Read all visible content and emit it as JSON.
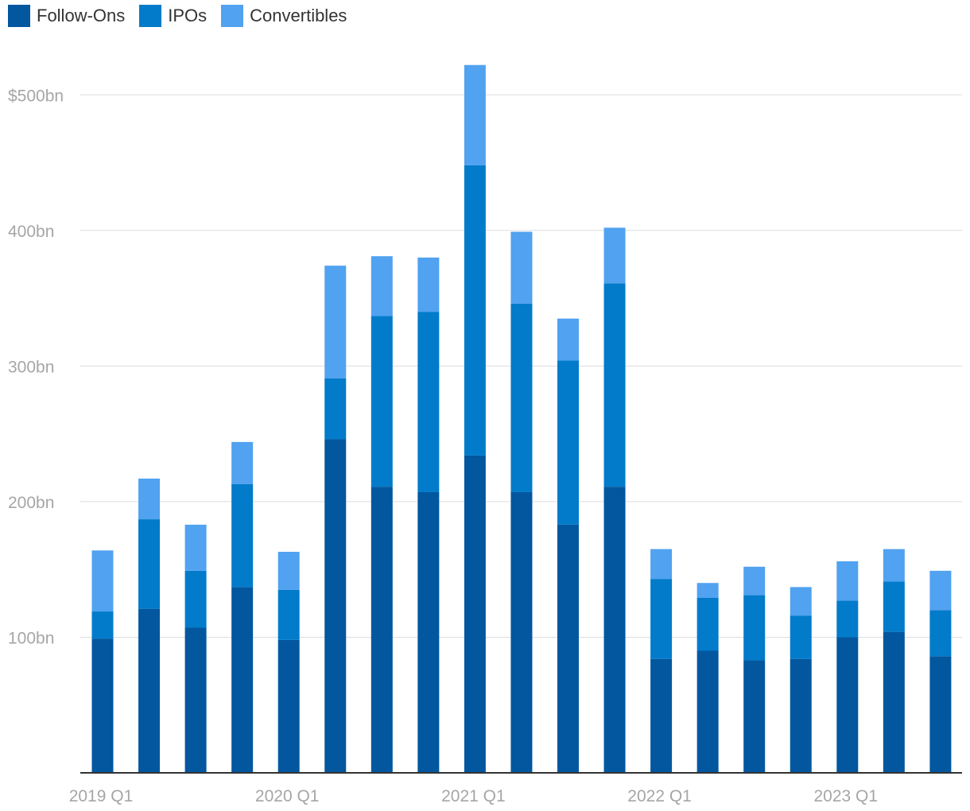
{
  "legend": {
    "items": [
      {
        "label": "Follow-Ons",
        "color": "#02579f"
      },
      {
        "label": "IPOs",
        "color": "#017bca"
      },
      {
        "label": "Convertibles",
        "color": "#51a2f0"
      }
    ]
  },
  "chart_data": {
    "type": "bar",
    "stacked": true,
    "categories": [
      "2019 Q1",
      "2019 Q2",
      "2019 Q3",
      "2019 Q4",
      "2020 Q1",
      "2020 Q2",
      "2020 Q3",
      "2020 Q4",
      "2021 Q1",
      "2021 Q2",
      "2021 Q3",
      "2021 Q4",
      "2022 Q1",
      "2022 Q2",
      "2022 Q3",
      "2022 Q4",
      "2023 Q1",
      "2023 Q2",
      "2023 Q3"
    ],
    "x_tick_labels": [
      {
        "index": 0,
        "label": "2019 Q1"
      },
      {
        "index": 4,
        "label": "2020 Q1"
      },
      {
        "index": 8,
        "label": "2021 Q1"
      },
      {
        "index": 12,
        "label": "2022 Q1"
      },
      {
        "index": 16,
        "label": "2023 Q1"
      }
    ],
    "series": [
      {
        "name": "Follow-Ons",
        "color": "#02579f",
        "values": [
          99,
          121,
          107,
          137,
          98,
          246,
          211,
          207,
          234,
          207,
          183,
          211,
          84,
          90,
          83,
          84,
          100,
          104,
          86
        ]
      },
      {
        "name": "IPOs",
        "color": "#017bca",
        "values": [
          20,
          66,
          42,
          76,
          37,
          45,
          126,
          133,
          214,
          139,
          121,
          150,
          59,
          39,
          48,
          32,
          27,
          37,
          34
        ]
      },
      {
        "name": "Convertibles",
        "color": "#51a2f0",
        "values": [
          45,
          30,
          34,
          31,
          28,
          83,
          44,
          40,
          74,
          53,
          31,
          41,
          22,
          11,
          21,
          21,
          29,
          24,
          29
        ]
      }
    ],
    "ylim": [
      0,
      520
    ],
    "y_ticks": [
      {
        "value": 100,
        "label": "100bn"
      },
      {
        "value": 200,
        "label": "200bn"
      },
      {
        "value": 300,
        "label": "300bn"
      },
      {
        "value": 400,
        "label": "400bn"
      },
      {
        "value": 500,
        "label": "$500bn"
      }
    ],
    "grid": true,
    "legend_position": "top-left",
    "title": "",
    "xlabel": "",
    "ylabel": ""
  }
}
